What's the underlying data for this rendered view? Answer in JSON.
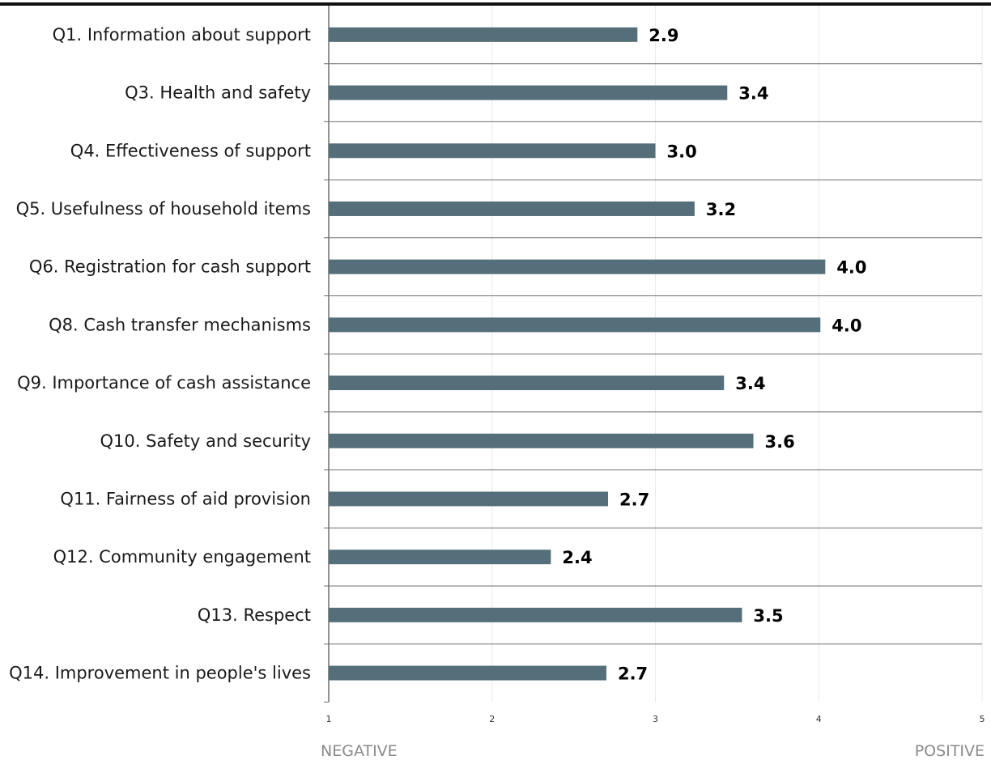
{
  "chart_data": {
    "type": "bar",
    "orientation": "horizontal",
    "categories": [
      "Q1. Information about support",
      "Q3. Health and safety",
      "Q4. Effectiveness of support",
      "Q5. Usefulness of household items",
      "Q6. Registration for cash support",
      "Q8. Cash transfer mechanisms",
      "Q9. Importance of cash assistance",
      "Q10. Safety and security",
      "Q11. Fairness of aid provision",
      "Q12. Community engagement",
      "Q13. Respect",
      "Q14. Improvement in people's lives"
    ],
    "values": [
      2.89,
      3.44,
      3.0,
      3.24,
      4.04,
      4.01,
      3.42,
      3.6,
      2.71,
      2.36,
      3.53,
      2.7
    ],
    "value_labels": [
      "2.9",
      "3.4",
      "3.0",
      "3.2",
      "4.0",
      "4.0",
      "3.4",
      "3.6",
      "2.7",
      "2.4",
      "3.5",
      "2.7"
    ],
    "xlim": [
      1,
      5
    ],
    "ticks": [
      "1",
      "2",
      "3",
      "4",
      "5"
    ],
    "axis_end_labels": {
      "left": "NEGATIVE",
      "right": "POSITIVE"
    },
    "grid": true,
    "colors": {
      "bar": "#546e7a",
      "grid": "#e9e9e9",
      "separator": "#6f6f6f",
      "top_rule": "#111111"
    }
  }
}
